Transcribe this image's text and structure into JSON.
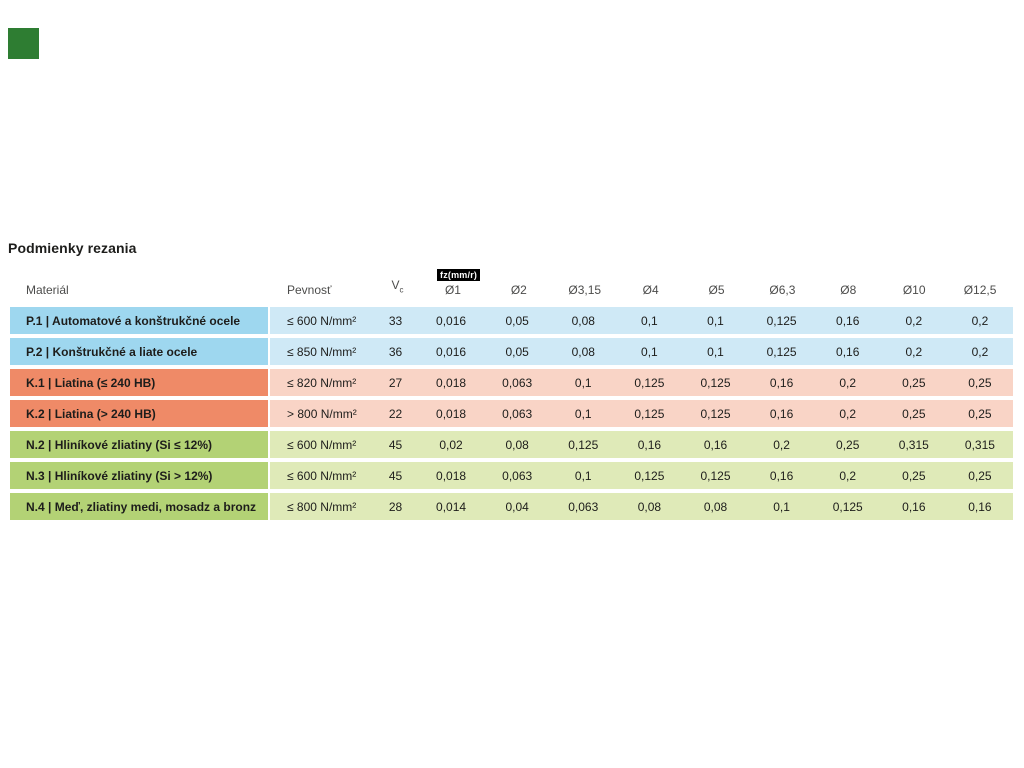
{
  "page": {
    "title": "Podmienky rezania"
  },
  "logo": {
    "color": "#2e7d32"
  },
  "table": {
    "badge": {
      "label": "fz(mm/r)",
      "bg": "#000000",
      "fg": "#ffffff"
    },
    "headers": {
      "material": "Materiál",
      "strength": "Pevnosť",
      "vc_main": "V",
      "vc_sub": "c",
      "diameters": [
        "Ø1",
        "Ø2",
        "Ø3,15",
        "Ø4",
        "Ø5",
        "Ø6,3",
        "Ø8",
        "Ø10",
        "Ø12,5"
      ]
    },
    "group_colors": {
      "P": {
        "label": "#9ed7ef",
        "row": "#cfe9f6"
      },
      "K": {
        "label": "#ef8a67",
        "row": "#f9d4c6"
      },
      "N": {
        "label": "#b3d275",
        "row": "#dfeab8"
      }
    },
    "rows": [
      {
        "group": "P",
        "material": "P.1 | Automatové a konštrukčné ocele",
        "strength": "≤ 600 N/mm²",
        "vc": "33",
        "values": [
          "0,016",
          "0,05",
          "0,08",
          "0,1",
          "0,1",
          "0,125",
          "0,16",
          "0,2",
          "0,2"
        ]
      },
      {
        "group": "P",
        "material": "P.2 | Konštrukčné a liate ocele",
        "strength": "≤ 850 N/mm²",
        "vc": "36",
        "values": [
          "0,016",
          "0,05",
          "0,08",
          "0,1",
          "0,1",
          "0,125",
          "0,16",
          "0,2",
          "0,2"
        ]
      },
      {
        "group": "K",
        "material": "K.1 | Liatina (≤ 240 HB)",
        "strength": "≤ 820 N/mm²",
        "vc": "27",
        "values": [
          "0,018",
          "0,063",
          "0,1",
          "0,125",
          "0,125",
          "0,16",
          "0,2",
          "0,25",
          "0,25"
        ]
      },
      {
        "group": "K",
        "material": "K.2 | Liatina (> 240 HB)",
        "strength": "> 800 N/mm²",
        "vc": "22",
        "values": [
          "0,018",
          "0,063",
          "0,1",
          "0,125",
          "0,125",
          "0,16",
          "0,2",
          "0,25",
          "0,25"
        ]
      },
      {
        "group": "N",
        "material": "N.2 | Hliníkové zliatiny (Si ≤ 12%)",
        "strength": "≤ 600 N/mm²",
        "vc": "45",
        "values": [
          "0,02",
          "0,08",
          "0,125",
          "0,16",
          "0,16",
          "0,2",
          "0,25",
          "0,315",
          "0,315"
        ]
      },
      {
        "group": "N",
        "material": "N.3 | Hliníkové zliatiny (Si > 12%)",
        "strength": "≤ 600 N/mm²",
        "vc": "45",
        "values": [
          "0,018",
          "0,063",
          "0,1",
          "0,125",
          "0,125",
          "0,16",
          "0,2",
          "0,25",
          "0,25"
        ]
      },
      {
        "group": "N",
        "material": "N.4 | Meď, zliatiny medi, mosadz a bronz",
        "strength": "≤ 800 N/mm²",
        "vc": "28",
        "values": [
          "0,014",
          "0,04",
          "0,063",
          "0,08",
          "0,08",
          "0,1",
          "0,125",
          "0,16",
          "0,16"
        ]
      }
    ]
  }
}
